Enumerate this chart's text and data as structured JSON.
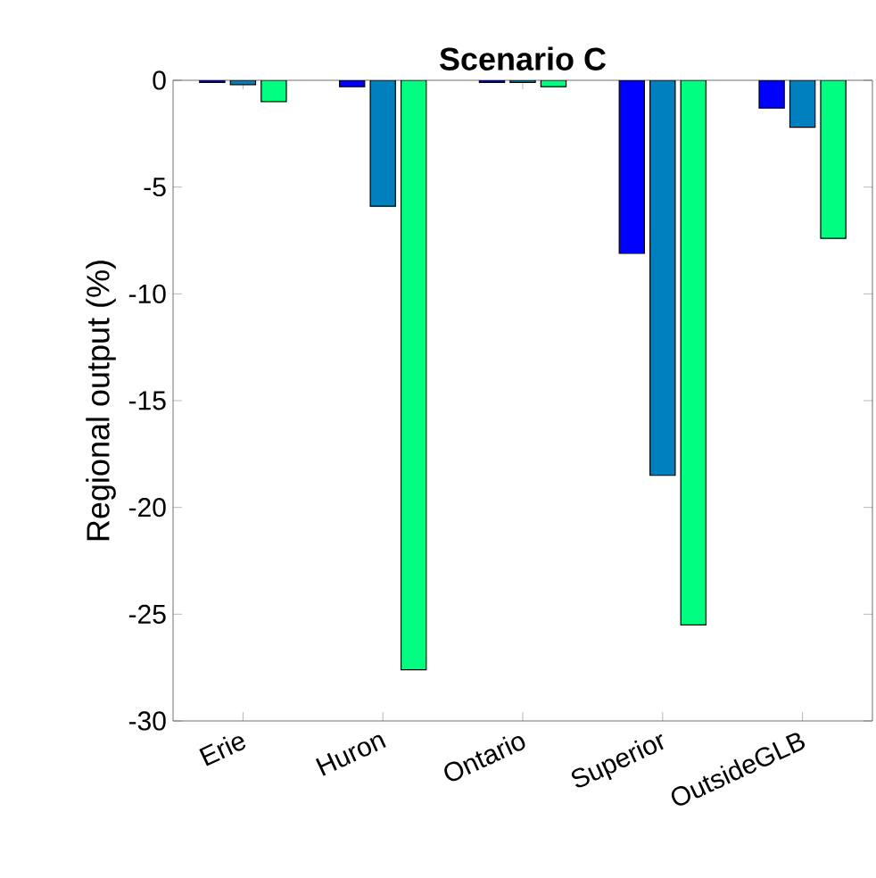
{
  "chart_data": {
    "type": "bar",
    "title": "**Scenario C**",
    "ylabel": "Regional output (%)",
    "categories": [
      "Erie",
      "Huron",
      "Ontario",
      "Superior",
      "OutsideGLB"
    ],
    "series": [
      {
        "color": "#0000ff",
        "values": [
          -0.1,
          -0.3,
          -0.1,
          -8.1,
          -1.3
        ]
      },
      {
        "color": "#0080bf",
        "values": [
          -0.2,
          -5.9,
          -0.1,
          -18.5,
          -2.2
        ]
      },
      {
        "color": "#00ff80",
        "values": [
          -1.0,
          -27.6,
          -0.3,
          -25.5,
          -7.4
        ]
      }
    ],
    "ylim": [
      -30,
      0
    ],
    "yticks": [
      -30,
      -25,
      -20,
      -15,
      -10,
      -5,
      0
    ],
    "grid": false
  }
}
